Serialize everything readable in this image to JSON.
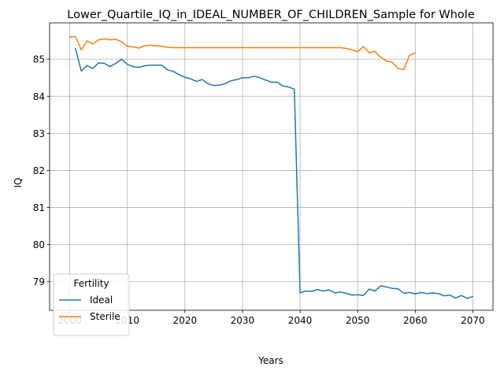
{
  "chart_data": {
    "type": "line",
    "title": "Lower_Quartile_IQ_in_IDEAL_NUMBER_OF_CHILDREN_Sample for Whole",
    "xlabel": "Years",
    "ylabel": "IQ",
    "xlim": [
      1996.5,
      2073.5
    ],
    "ylim": [
      78.23,
      85.98
    ],
    "xticks": [
      2000,
      2010,
      2020,
      2030,
      2040,
      2050,
      2060,
      2070
    ],
    "yticks": [
      79,
      80,
      81,
      82,
      83,
      84,
      85
    ],
    "grid": true,
    "legend": {
      "title": "Fertility",
      "position": "lower-left"
    },
    "series": [
      {
        "name": "Ideal",
        "color": "#1f77b4",
        "x": [
          2001,
          2002,
          2003,
          2004,
          2005,
          2006,
          2007,
          2008,
          2009,
          2010,
          2011,
          2012,
          2013,
          2014,
          2015,
          2016,
          2017,
          2018,
          2019,
          2020,
          2021,
          2022,
          2023,
          2024,
          2025,
          2026,
          2027,
          2028,
          2029,
          2030,
          2031,
          2032,
          2033,
          2034,
          2035,
          2036,
          2037,
          2038,
          2039,
          2040,
          2041,
          2042,
          2043,
          2044,
          2045,
          2046,
          2047,
          2048,
          2049,
          2050,
          2051,
          2052,
          2053,
          2054,
          2055,
          2056,
          2057,
          2058,
          2059,
          2060,
          2061,
          2062,
          2063,
          2064,
          2065,
          2066,
          2067,
          2068,
          2069,
          2070
        ],
        "values": [
          85.28,
          84.68,
          84.83,
          84.75,
          84.9,
          84.89,
          84.8,
          84.89,
          85.0,
          84.86,
          84.8,
          84.78,
          84.82,
          84.84,
          84.84,
          84.84,
          84.71,
          84.67,
          84.58,
          84.51,
          84.47,
          84.4,
          84.45,
          84.34,
          84.29,
          84.3,
          84.34,
          84.42,
          84.45,
          84.5,
          84.5,
          84.54,
          84.5,
          84.44,
          84.38,
          84.38,
          84.28,
          84.25,
          84.19,
          78.7,
          78.75,
          78.74,
          78.79,
          78.75,
          78.78,
          78.7,
          78.72,
          78.69,
          78.64,
          78.65,
          78.63,
          78.8,
          78.75,
          78.89,
          78.86,
          78.82,
          78.81,
          78.69,
          78.71,
          78.67,
          78.71,
          78.68,
          78.7,
          78.68,
          78.62,
          78.64,
          78.56,
          78.63,
          78.55,
          78.6
        ]
      },
      {
        "name": "Sterile",
        "color": "#ff7f0e",
        "x": [
          2000,
          2001,
          2002,
          2003,
          2004,
          2005,
          2006,
          2007,
          2008,
          2009,
          2010,
          2011,
          2012,
          2013,
          2014,
          2015,
          2016,
          2017,
          2018,
          2019,
          2020,
          2021,
          2022,
          2023,
          2024,
          2025,
          2026,
          2027,
          2028,
          2029,
          2030,
          2031,
          2032,
          2033,
          2034,
          2035,
          2036,
          2037,
          2038,
          2039,
          2040,
          2041,
          2042,
          2043,
          2044,
          2045,
          2046,
          2047,
          2048,
          2049,
          2050,
          2051,
          2052,
          2053,
          2054,
          2055,
          2056,
          2057,
          2058,
          2059,
          2060
        ],
        "values": [
          85.6,
          85.61,
          85.25,
          85.49,
          85.41,
          85.52,
          85.55,
          85.52,
          85.54,
          85.47,
          85.35,
          85.33,
          85.3,
          85.36,
          85.38,
          85.36,
          85.35,
          85.32,
          85.31,
          85.31,
          85.31,
          85.31,
          85.31,
          85.31,
          85.31,
          85.31,
          85.31,
          85.31,
          85.31,
          85.31,
          85.31,
          85.31,
          85.31,
          85.31,
          85.31,
          85.31,
          85.31,
          85.31,
          85.31,
          85.31,
          85.31,
          85.31,
          85.31,
          85.31,
          85.31,
          85.31,
          85.31,
          85.31,
          85.29,
          85.25,
          85.2,
          85.34,
          85.17,
          85.21,
          85.05,
          84.95,
          84.92,
          84.75,
          84.72,
          85.1,
          85.17
        ]
      }
    ]
  }
}
